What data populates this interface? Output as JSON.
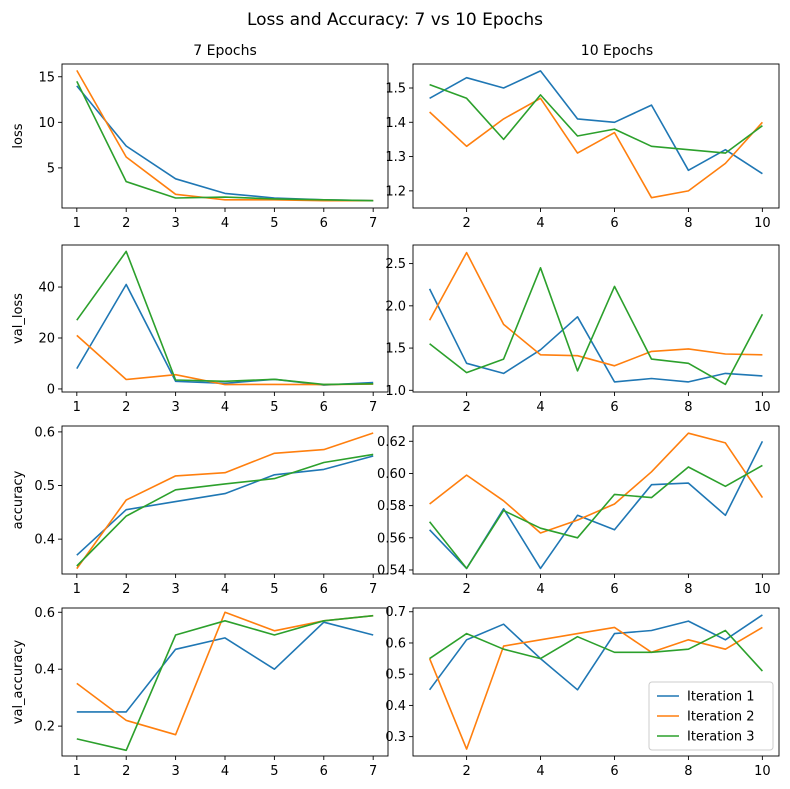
{
  "title": "Loss and Accuracy: 7 vs 10 Epochs",
  "columns": [
    "7 Epochs",
    "10 Epochs"
  ],
  "legend": [
    "Iteration 1",
    "Iteration 2",
    "Iteration 3"
  ],
  "colors": [
    "#1f77b4",
    "#ff7f0e",
    "#2ca02c"
  ],
  "chart_data": [
    {
      "type": "line",
      "metric": "loss",
      "column": "7 Epochs",
      "ylabel": "loss",
      "x": [
        1,
        2,
        3,
        4,
        5,
        6,
        7
      ],
      "xlim": [
        0.7,
        7.3
      ],
      "ylim": [
        0.6,
        16.4
      ],
      "xticks": [
        1,
        2,
        3,
        4,
        5,
        6,
        7
      ],
      "yticks": [
        5,
        10,
        15
      ],
      "ytick_labels": [
        "5",
        "10",
        "15"
      ],
      "series": [
        {
          "name": "Iteration 1",
          "values": [
            14.0,
            7.4,
            3.8,
            2.2,
            1.7,
            1.5,
            1.4
          ]
        },
        {
          "name": "Iteration 2",
          "values": [
            15.7,
            6.2,
            2.1,
            1.5,
            1.5,
            1.4,
            1.4
          ]
        },
        {
          "name": "Iteration 3",
          "values": [
            14.5,
            3.5,
            1.7,
            1.8,
            1.6,
            1.5,
            1.4
          ]
        }
      ]
    },
    {
      "type": "line",
      "metric": "loss",
      "column": "10 Epochs",
      "ylabel": "",
      "x": [
        1,
        2,
        3,
        4,
        5,
        6,
        7,
        8,
        9,
        10
      ],
      "xlim": [
        0.55,
        10.45
      ],
      "ylim": [
        1.15,
        1.57
      ],
      "xticks": [
        2,
        4,
        6,
        8,
        10
      ],
      "yticks": [
        1.2,
        1.3,
        1.4,
        1.5
      ],
      "ytick_labels": [
        "1.2",
        "1.3",
        "1.4",
        "1.5"
      ],
      "series": [
        {
          "name": "Iteration 1",
          "values": [
            1.47,
            1.53,
            1.5,
            1.55,
            1.41,
            1.4,
            1.45,
            1.26,
            1.32,
            1.25
          ]
        },
        {
          "name": "Iteration 2",
          "values": [
            1.43,
            1.33,
            1.41,
            1.47,
            1.31,
            1.37,
            1.18,
            1.2,
            1.28,
            1.4
          ]
        },
        {
          "name": "Iteration 3",
          "values": [
            1.51,
            1.47,
            1.35,
            1.48,
            1.36,
            1.38,
            1.33,
            1.32,
            1.31,
            1.39
          ]
        }
      ]
    },
    {
      "type": "line",
      "metric": "val_loss",
      "column": "7 Epochs",
      "ylabel": "val_loss",
      "x": [
        1,
        2,
        3,
        4,
        5,
        6,
        7
      ],
      "xlim": [
        0.7,
        7.3
      ],
      "ylim": [
        -1.2,
        56.5
      ],
      "xticks": [
        1,
        2,
        3,
        4,
        5,
        6,
        7
      ],
      "yticks": [
        0,
        20,
        40
      ],
      "ytick_labels": [
        "0",
        "20",
        "40"
      ],
      "series": [
        {
          "name": "Iteration 1",
          "values": [
            8.0,
            41.0,
            3.0,
            2.2,
            3.8,
            1.5,
            2.5
          ]
        },
        {
          "name": "Iteration 2",
          "values": [
            21.0,
            3.7,
            5.6,
            1.7,
            1.8,
            1.7,
            1.9
          ]
        },
        {
          "name": "Iteration 3",
          "values": [
            27.0,
            54.0,
            3.5,
            3.0,
            3.8,
            1.8,
            2.0
          ]
        }
      ]
    },
    {
      "type": "line",
      "metric": "val_loss",
      "column": "10 Epochs",
      "ylabel": "",
      "x": [
        1,
        2,
        3,
        4,
        5,
        6,
        7,
        8,
        9,
        10
      ],
      "xlim": [
        0.55,
        10.45
      ],
      "ylim": [
        0.98,
        2.72
      ],
      "xticks": [
        2,
        4,
        6,
        8,
        10
      ],
      "yticks": [
        1.0,
        1.5,
        2.0,
        2.5
      ],
      "ytick_labels": [
        "1.0",
        "1.5",
        "2.0",
        "2.5"
      ],
      "series": [
        {
          "name": "Iteration 1",
          "values": [
            2.2,
            1.32,
            1.2,
            1.48,
            1.87,
            1.1,
            1.14,
            1.1,
            1.2,
            1.17
          ]
        },
        {
          "name": "Iteration 2",
          "values": [
            1.83,
            2.63,
            1.78,
            1.42,
            1.41,
            1.29,
            1.46,
            1.49,
            1.43,
            1.42
          ]
        },
        {
          "name": "Iteration 3",
          "values": [
            1.55,
            1.21,
            1.37,
            2.45,
            1.23,
            2.23,
            1.37,
            1.32,
            1.07,
            1.9
          ]
        }
      ]
    },
    {
      "type": "line",
      "metric": "accuracy",
      "column": "7 Epochs",
      "ylabel": "accuracy",
      "x": [
        1,
        2,
        3,
        4,
        5,
        6,
        7
      ],
      "xlim": [
        0.7,
        7.3
      ],
      "ylim": [
        0.335,
        0.611
      ],
      "xticks": [
        1,
        2,
        3,
        4,
        5,
        6,
        7
      ],
      "yticks": [
        0.4,
        0.5,
        0.6
      ],
      "ytick_labels": [
        "0.4",
        "0.5",
        "0.6"
      ],
      "series": [
        {
          "name": "Iteration 1",
          "values": [
            0.37,
            0.455,
            0.47,
            0.485,
            0.52,
            0.53,
            0.555
          ]
        },
        {
          "name": "Iteration 2",
          "values": [
            0.345,
            0.473,
            0.518,
            0.524,
            0.56,
            0.567,
            0.598
          ]
        },
        {
          "name": "Iteration 3",
          "values": [
            0.35,
            0.443,
            0.492,
            0.503,
            0.513,
            0.543,
            0.558
          ]
        }
      ]
    },
    {
      "type": "line",
      "metric": "accuracy",
      "column": "10 Epochs",
      "ylabel": "",
      "x": [
        1,
        2,
        3,
        4,
        5,
        6,
        7,
        8,
        9,
        10
      ],
      "xlim": [
        0.55,
        10.45
      ],
      "ylim": [
        0.5375,
        0.6295
      ],
      "xticks": [
        2,
        4,
        6,
        8,
        10
      ],
      "yticks": [
        0.54,
        0.56,
        0.58,
        0.6,
        0.62
      ],
      "ytick_labels": [
        "0.54",
        "0.56",
        "0.58",
        "0.60",
        "0.62"
      ],
      "series": [
        {
          "name": "Iteration 1",
          "values": [
            0.565,
            0.541,
            0.578,
            0.541,
            0.574,
            0.565,
            0.593,
            0.594,
            0.574,
            0.62
          ]
        },
        {
          "name": "Iteration 2",
          "values": [
            0.581,
            0.599,
            0.583,
            0.563,
            0.571,
            0.581,
            0.601,
            0.625,
            0.619,
            0.585
          ]
        },
        {
          "name": "Iteration 3",
          "values": [
            0.57,
            0.541,
            0.577,
            0.566,
            0.56,
            0.587,
            0.585,
            0.604,
            0.592,
            0.605
          ]
        }
      ]
    },
    {
      "type": "line",
      "metric": "val_accuracy",
      "column": "7 Epochs",
      "ylabel": "val_accuracy",
      "x": [
        1,
        2,
        3,
        4,
        5,
        6,
        7
      ],
      "xlim": [
        0.7,
        7.3
      ],
      "ylim": [
        0.095,
        0.615
      ],
      "xticks": [
        1,
        2,
        3,
        4,
        5,
        6,
        7
      ],
      "yticks": [
        0.2,
        0.4,
        0.6
      ],
      "ytick_labels": [
        "0.2",
        "0.4",
        "0.6"
      ],
      "series": [
        {
          "name": "Iteration 1",
          "values": [
            0.25,
            0.25,
            0.47,
            0.51,
            0.4,
            0.565,
            0.52
          ]
        },
        {
          "name": "Iteration 2",
          "values": [
            0.35,
            0.22,
            0.17,
            0.6,
            0.535,
            0.57,
            0.588
          ]
        },
        {
          "name": "Iteration 3",
          "values": [
            0.155,
            0.115,
            0.52,
            0.57,
            0.52,
            0.57,
            0.588
          ]
        }
      ]
    },
    {
      "type": "line",
      "metric": "val_accuracy",
      "column": "10 Epochs",
      "ylabel": "",
      "x": [
        1,
        2,
        3,
        4,
        5,
        6,
        7,
        8,
        9,
        10
      ],
      "xlim": [
        0.55,
        10.45
      ],
      "ylim": [
        0.238,
        0.712
      ],
      "xticks": [
        2,
        4,
        6,
        8,
        10
      ],
      "yticks": [
        0.3,
        0.4,
        0.5,
        0.6,
        0.7
      ],
      "ytick_labels": [
        "0.3",
        "0.4",
        "0.5",
        "0.6",
        "0.7"
      ],
      "legend_position": "bottom-right",
      "series": [
        {
          "name": "Iteration 1",
          "values": [
            0.45,
            0.61,
            0.66,
            0.55,
            0.45,
            0.63,
            0.64,
            0.67,
            0.61,
            0.69
          ]
        },
        {
          "name": "Iteration 2",
          "values": [
            0.55,
            0.26,
            0.59,
            0.61,
            0.63,
            0.65,
            0.57,
            0.61,
            0.58,
            0.65
          ]
        },
        {
          "name": "Iteration 3",
          "values": [
            0.55,
            0.63,
            0.58,
            0.55,
            0.62,
            0.57,
            0.57,
            0.58,
            0.64,
            0.51
          ]
        }
      ]
    }
  ]
}
